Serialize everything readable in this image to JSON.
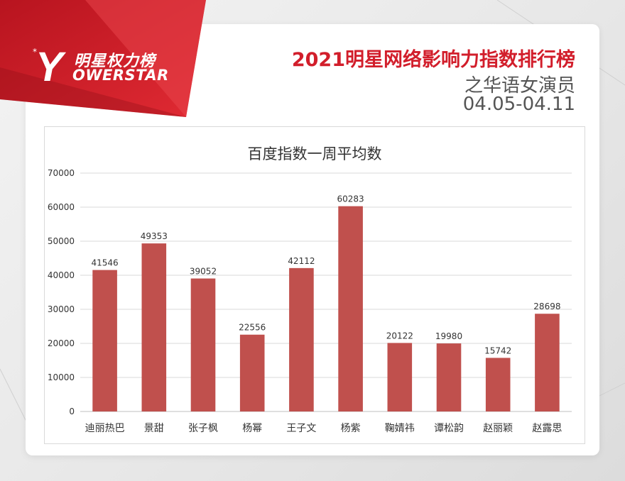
{
  "brand": {
    "logo_cn": "明星权力榜",
    "logo_en": "OWERSTAR",
    "logo_initial": "Y",
    "star": "*"
  },
  "header": {
    "title": "2021明星网络影响力指数排行榜",
    "subtitle": "之华语女演员",
    "date_range": "04.05-04.11"
  },
  "colors": {
    "brand_red": "#d21e2b",
    "bar": "#c0504d"
  },
  "chart_data": {
    "type": "bar",
    "title": "百度指数一周平均数",
    "xlabel": "",
    "ylabel": "",
    "categories": [
      "迪丽热巴",
      "景甜",
      "张子枫",
      "杨幂",
      "王子文",
      "杨紫",
      "鞠婧祎",
      "谭松韵",
      "赵丽颖",
      "赵露思"
    ],
    "values": [
      41546,
      49353,
      39052,
      22556,
      42112,
      60283,
      20122,
      19980,
      15742,
      28698
    ],
    "ylim": [
      0,
      70000
    ],
    "yticks": [
      0,
      10000,
      20000,
      30000,
      40000,
      50000,
      60000,
      70000
    ],
    "grid": true,
    "legend": "none",
    "data_labels": true
  }
}
